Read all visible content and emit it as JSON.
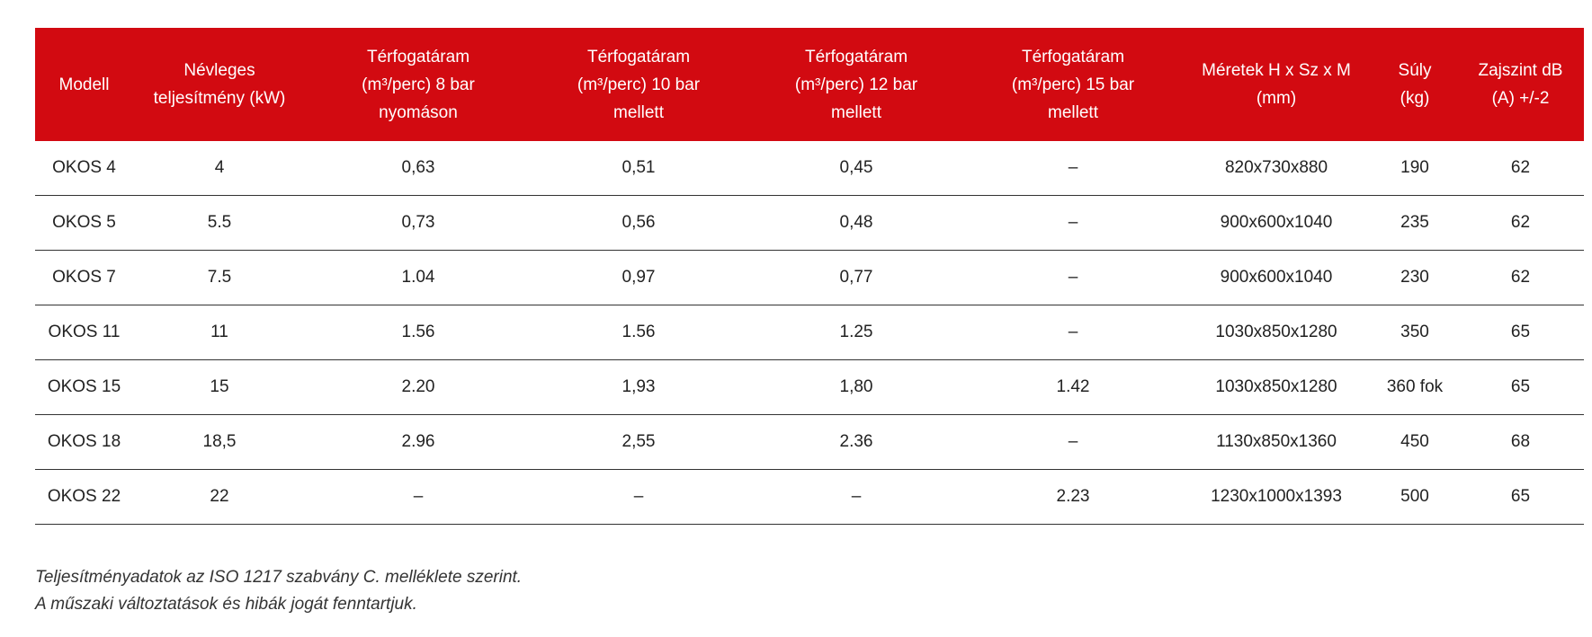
{
  "table": {
    "headers": [
      [
        "Modell"
      ],
      [
        "Névleges",
        "teljesítmény (kW)"
      ],
      [
        "Térfogatáram",
        "(m³/perc) 8 bar",
        "nyomáson"
      ],
      [
        "Térfogatáram",
        "(m³/perc) 10 bar",
        "mellett"
      ],
      [
        "Térfogatáram",
        "(m³/perc) 12 bar",
        "mellett"
      ],
      [
        "Térfogatáram",
        "(m³/perc) 15 bar",
        "mellett"
      ],
      [
        "Méretek H x Sz x M",
        "(mm)"
      ],
      [
        "Súly",
        "(kg)"
      ],
      [
        "Zajszint dB",
        "(A) +/-2"
      ]
    ],
    "rows": [
      [
        "OKOS 4",
        "4",
        "0,63",
        "0,51",
        "0,45",
        "–",
        "820x730x880",
        "190",
        "62"
      ],
      [
        "OKOS 5",
        "5.5",
        "0,73",
        "0,56",
        "0,48",
        "–",
        "900x600x1040",
        "235",
        "62"
      ],
      [
        "OKOS 7",
        "7.5",
        "1.04",
        "0,97",
        "0,77",
        "–",
        "900x600x1040",
        "230",
        "62"
      ],
      [
        "OKOS 11",
        "11",
        "1.56",
        "1.56",
        "1.25",
        "–",
        "1030x850x1280",
        "350",
        "65"
      ],
      [
        "OKOS 15",
        "15",
        "2.20",
        "1,93",
        "1,80",
        "1.42",
        "1030x850x1280",
        "360 fok",
        "65"
      ],
      [
        "OKOS 18",
        "18,5",
        "2.96",
        "2,55",
        "2.36",
        "–",
        "1130x850x1360",
        "450",
        "68"
      ],
      [
        "OKOS 22",
        "22",
        "–",
        "–",
        "–",
        "2.23",
        "1230x1000x1393",
        "500",
        "65"
      ]
    ]
  },
  "footer": {
    "lines": [
      "Teljesítményadatok az ISO 1217 szabvány C. melléklete szerint.",
      "A műszaki változtatások és hibák jogát fenntartjuk."
    ]
  }
}
